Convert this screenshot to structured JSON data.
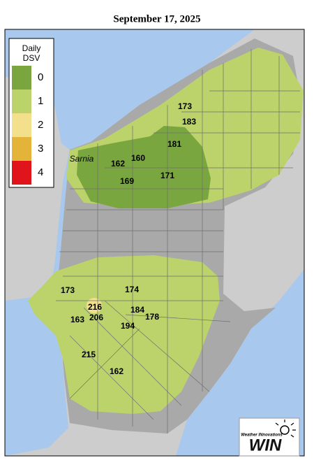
{
  "title": "September 17, 2025",
  "legend": {
    "title_lines": [
      "Daily",
      "DSV"
    ],
    "items": [
      {
        "label": "0",
        "color": "#7aa63f"
      },
      {
        "label": "1",
        "color": "#bbd36a"
      },
      {
        "label": "2",
        "color": "#f3e08c"
      },
      {
        "label": "3",
        "color": "#e3b33a"
      },
      {
        "label": "4",
        "color": "#e0151b"
      }
    ]
  },
  "place_label": "Sarnia",
  "stations": [
    "173",
    "183",
    "181",
    "160",
    "162",
    "169",
    "171",
    "173",
    "174",
    "216",
    "184",
    "178",
    "163",
    "206",
    "194",
    "215",
    "162"
  ],
  "logo": {
    "tagline": "Weather INnovations",
    "name": "WIN"
  }
}
